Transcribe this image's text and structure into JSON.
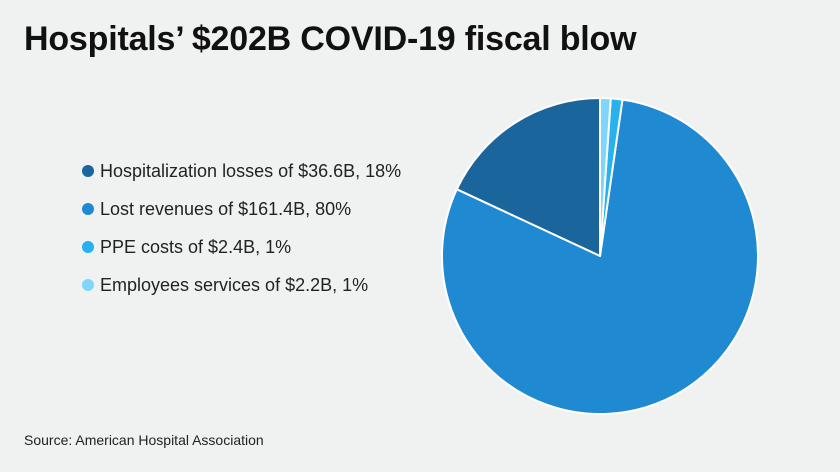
{
  "title": "Hospitals’ $202B COVID-19 fiscal blow",
  "source": "Source: American Hospital Association",
  "chart_data": {
    "type": "pie",
    "title": "Hospitals’ $202B COVID-19 fiscal blow",
    "unit": "$B",
    "legend_position": "left",
    "slices": [
      {
        "label": "Hospitalization losses of $36.6B, 18%",
        "category": "Hospitalization losses",
        "value": 36.6,
        "percent": 18,
        "color": "#1b659d"
      },
      {
        "label": "Lost revenues of $161.4B, 80%",
        "category": "Lost revenues",
        "value": 161.4,
        "percent": 80,
        "color": "#1f89d2"
      },
      {
        "label": "PPE costs of $2.4B, 1%",
        "category": "PPE costs",
        "value": 2.4,
        "percent": 1,
        "color": "#27b2ee"
      },
      {
        "label": "Employees services of $2.2B, 1%",
        "category": "Employees services",
        "value": 2.2,
        "percent": 1,
        "color": "#7fd6fa"
      }
    ],
    "start": "12 o'clock",
    "direction": "counter-clockwise"
  }
}
